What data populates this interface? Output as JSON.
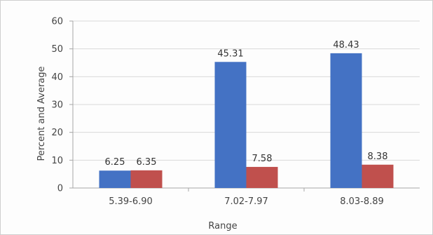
{
  "chart_data": {
    "type": "bar",
    "title": "",
    "xlabel": "Range",
    "ylabel": "Percent and Average",
    "categories": [
      "5.39-6.90",
      "7.02-7.97",
      "8.03-8.89"
    ],
    "series": [
      {
        "values": [
          6.25,
          45.31,
          48.43
        ],
        "color": "#4472c4"
      },
      {
        "values": [
          6.35,
          7.58,
          8.38
        ],
        "color": "#c0504d"
      }
    ],
    "ylim": [
      0,
      60
    ],
    "yticks": [
      0,
      10,
      20,
      30,
      40,
      50,
      60
    ],
    "data_labels": [
      [
        "6.25",
        "45.31",
        "48.43"
      ],
      [
        "6.35",
        "7.58",
        "8.38"
      ]
    ],
    "grid": true,
    "legend": "none"
  }
}
